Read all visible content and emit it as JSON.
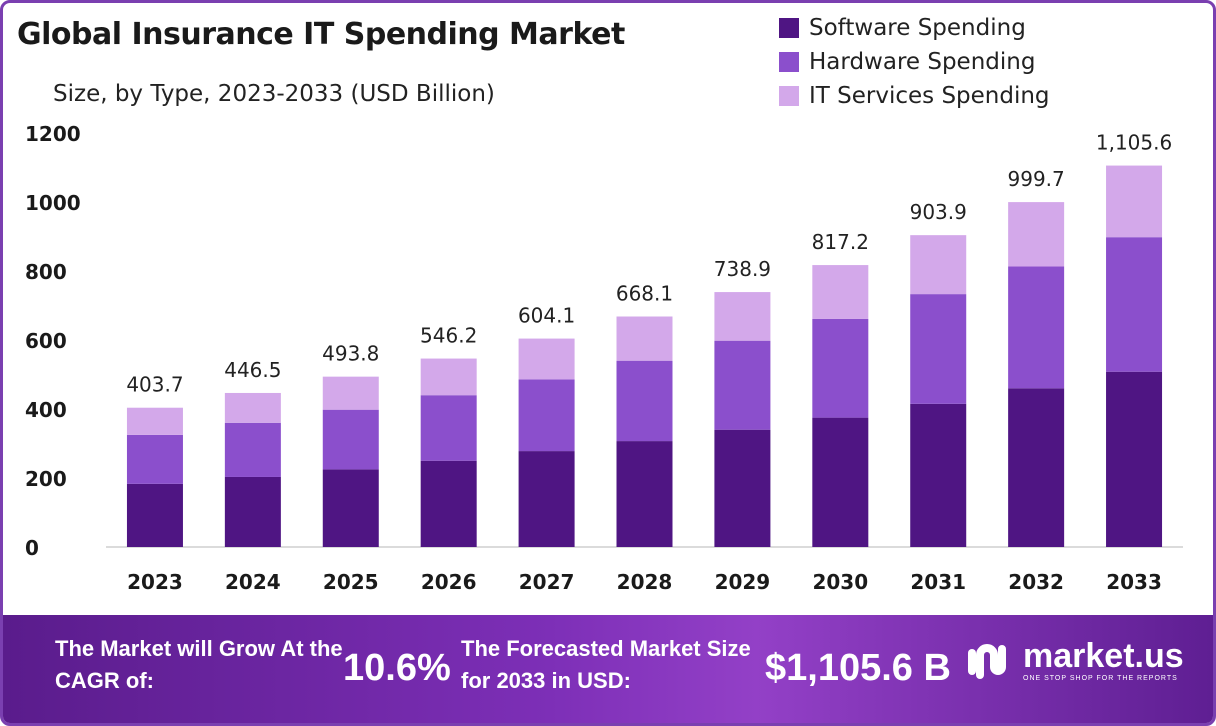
{
  "title": "Global Insurance IT Spending Market",
  "subtitle": "Size, by Type, 2023-2033 (USD Billion)",
  "legend": [
    {
      "label": "Software Spending",
      "color": "#4f1583"
    },
    {
      "label": "Hardware Spending",
      "color": "#8b4fcc"
    },
    {
      "label": "IT Services Spending",
      "color": "#d3a8ea"
    }
  ],
  "chart_data": {
    "type": "bar",
    "stacked": true,
    "title": "Global Insurance IT Spending Market",
    "subtitle": "Size, by Type, 2023-2033 (USD Billion)",
    "categories": [
      "2023",
      "2024",
      "2025",
      "2026",
      "2027",
      "2028",
      "2029",
      "2030",
      "2031",
      "2032",
      "2033"
    ],
    "series": [
      {
        "name": "Software Spending",
        "color": "#4f1583",
        "values": [
          183,
          203,
          225,
          250,
          278,
          307,
          340,
          375,
          415,
          460,
          508
        ]
      },
      {
        "name": "Hardware Spending",
        "color": "#8b4fcc",
        "values": [
          142,
          157,
          173,
          190,
          208,
          233,
          258,
          286,
          318,
          353,
          390
        ]
      },
      {
        "name": "IT Services Spending",
        "color": "#d3a8ea",
        "values": [
          78.7,
          86.5,
          95.8,
          106.2,
          118.1,
          128.1,
          140.9,
          156.2,
          170.9,
          186.7,
          207.6
        ]
      }
    ],
    "totals": [
      "403.7",
      "446.5",
      "493.8",
      "546.2",
      "604.1",
      "668.1",
      "738.9",
      "817.2",
      "903.9",
      "999.7",
      "1,105.6"
    ],
    "yticks": [
      0,
      200,
      400,
      600,
      800,
      1000,
      1200
    ],
    "ylim": [
      0,
      1200
    ],
    "xlabel": "",
    "ylabel": "",
    "grid": false
  },
  "footer": {
    "cagr_text": "The Market will Grow At the CAGR of:",
    "cagr_value": "10.6%",
    "forecast_text": "The Forecasted Market Size for 2033 in USD:",
    "forecast_value": "$1,105.6 B",
    "brand_name": "market.us",
    "brand_tagline": "ONE STOP SHOP FOR THE REPORTS"
  }
}
